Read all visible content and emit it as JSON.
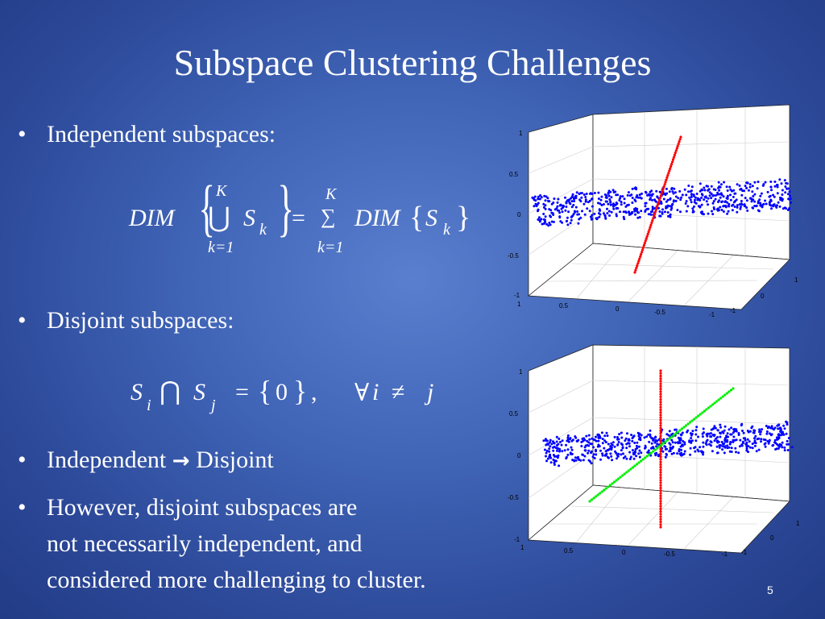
{
  "slide": {
    "title": "Subspace Clustering Challenges",
    "bullets": {
      "independent": "Independent subspaces:",
      "disjoint": "Disjoint subspaces:",
      "implication_left": "Independent",
      "implication_arrow": "→",
      "implication_right": "Disjoint",
      "however_lines": [
        "However, disjoint subspaces are",
        "not necessarily independent, and",
        "considered more challenging to cluster."
      ]
    },
    "equation1": {
      "lhs_op": "DIM",
      "union": "⋃",
      "set_letter": "S",
      "sub_k": "k",
      "upper": "K",
      "lower": "k=1",
      "equals": "=",
      "sum": "∑",
      "rhs_op": "DIM"
    },
    "equation2": {
      "s": "S",
      "sub_i": "i",
      "cap": "⋂",
      "sub_j": "j",
      "equals": "=",
      "zero": "0",
      "comma": ",",
      "forall": "∀",
      "i": "i",
      "neq": "≠",
      "j": "j"
    },
    "page_number": "5"
  },
  "plot_top": {
    "z_ticks": [
      "1",
      "0.5",
      "0",
      "-0.5",
      "-1"
    ],
    "x_ticks": [
      "1",
      "0.5",
      "0",
      "-0.5",
      "-1"
    ],
    "y_ticks": [
      "1",
      "0",
      "-1"
    ],
    "colors": {
      "plane": "#0000ff",
      "line": "#ff0000"
    }
  },
  "plot_bottom": {
    "z_ticks": [
      "1",
      "0.5",
      "0",
      "-0.5",
      "-1"
    ],
    "x_ticks": [
      "1",
      "0.5",
      "0",
      "-0.5",
      "-1"
    ],
    "y_ticks": [
      "1",
      "0",
      "-1"
    ],
    "colors": {
      "plane": "#0000ff",
      "line_vertical": "#ff0000",
      "line_diagonal": "#00ee00"
    }
  }
}
